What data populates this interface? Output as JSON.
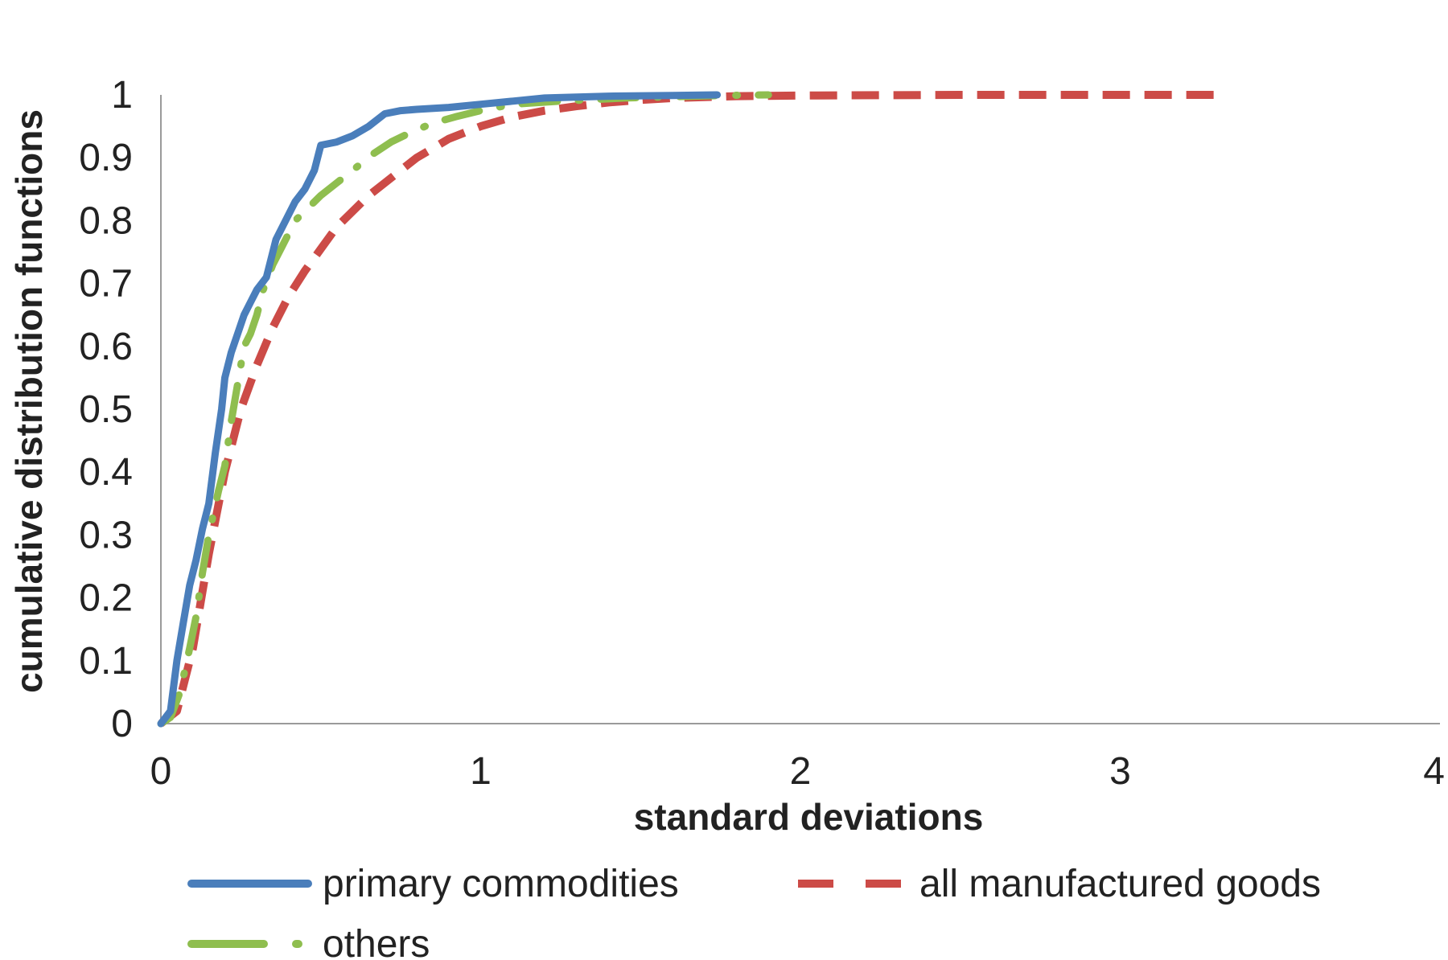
{
  "chart_data": {
    "type": "line",
    "title": "",
    "xlabel": "standard deviations",
    "ylabel": "cumulative distribution functions",
    "xlim": [
      0,
      4
    ],
    "ylim": [
      0,
      1
    ],
    "x_ticks": [
      "0",
      "1",
      "2",
      "3",
      "4"
    ],
    "y_ticks": [
      "0",
      "0.1",
      "0.2",
      "0.3",
      "0.4",
      "0.5",
      "0.6",
      "0.7",
      "0.8",
      "0.9",
      "1"
    ],
    "grid": false,
    "legend_position": "bottom",
    "series": [
      {
        "name": "primary commodities",
        "color": "#4a7ebb",
        "style": "solid",
        "x": [
          0,
          0.03,
          0.05,
          0.07,
          0.09,
          0.11,
          0.13,
          0.15,
          0.17,
          0.19,
          0.2,
          0.22,
          0.24,
          0.26,
          0.28,
          0.3,
          0.33,
          0.36,
          0.39,
          0.42,
          0.45,
          0.48,
          0.5,
          0.55,
          0.6,
          0.65,
          0.7,
          0.75,
          0.8,
          0.9,
          1.0,
          1.1,
          1.2,
          1.4,
          1.6,
          1.74
        ],
        "y": [
          0,
          0.02,
          0.1,
          0.16,
          0.22,
          0.26,
          0.31,
          0.35,
          0.43,
          0.5,
          0.55,
          0.59,
          0.62,
          0.65,
          0.67,
          0.69,
          0.71,
          0.77,
          0.8,
          0.83,
          0.85,
          0.88,
          0.92,
          0.925,
          0.935,
          0.95,
          0.97,
          0.975,
          0.977,
          0.98,
          0.985,
          0.99,
          0.995,
          0.998,
          0.999,
          1.0
        ]
      },
      {
        "name": "all manufactured goods",
        "color": "#cc4b47",
        "style": "dashed",
        "x": [
          0,
          0.05,
          0.1,
          0.15,
          0.2,
          0.25,
          0.3,
          0.35,
          0.4,
          0.45,
          0.5,
          0.55,
          0.6,
          0.65,
          0.7,
          0.75,
          0.8,
          0.85,
          0.9,
          0.95,
          1.0,
          1.1,
          1.2,
          1.3,
          1.4,
          1.5,
          1.6,
          1.8,
          2.0,
          2.5,
          3.0,
          3.3
        ],
        "y": [
          0,
          0.02,
          0.12,
          0.27,
          0.4,
          0.5,
          0.57,
          0.63,
          0.68,
          0.72,
          0.755,
          0.79,
          0.815,
          0.84,
          0.86,
          0.88,
          0.9,
          0.915,
          0.93,
          0.94,
          0.95,
          0.965,
          0.975,
          0.982,
          0.988,
          0.992,
          0.995,
          0.998,
          0.999,
          1.0,
          1.0,
          1.0
        ]
      },
      {
        "name": "others",
        "color": "#8fbe4f",
        "style": "dash-dot",
        "x": [
          0,
          0.03,
          0.06,
          0.09,
          0.11,
          0.13,
          0.15,
          0.18,
          0.2,
          0.22,
          0.24,
          0.26,
          0.28,
          0.3,
          0.32,
          0.35,
          0.38,
          0.42,
          0.46,
          0.5,
          0.55,
          0.6,
          0.66,
          0.72,
          0.78,
          0.85,
          0.92,
          1.0,
          1.1,
          1.25,
          1.45,
          1.6,
          1.75,
          1.9
        ],
        "y": [
          0,
          0.01,
          0.05,
          0.12,
          0.17,
          0.24,
          0.3,
          0.37,
          0.41,
          0.48,
          0.54,
          0.6,
          0.62,
          0.65,
          0.69,
          0.73,
          0.76,
          0.8,
          0.82,
          0.84,
          0.86,
          0.88,
          0.905,
          0.925,
          0.94,
          0.955,
          0.965,
          0.975,
          0.985,
          0.99,
          0.995,
          0.997,
          0.999,
          1.0
        ]
      }
    ]
  }
}
